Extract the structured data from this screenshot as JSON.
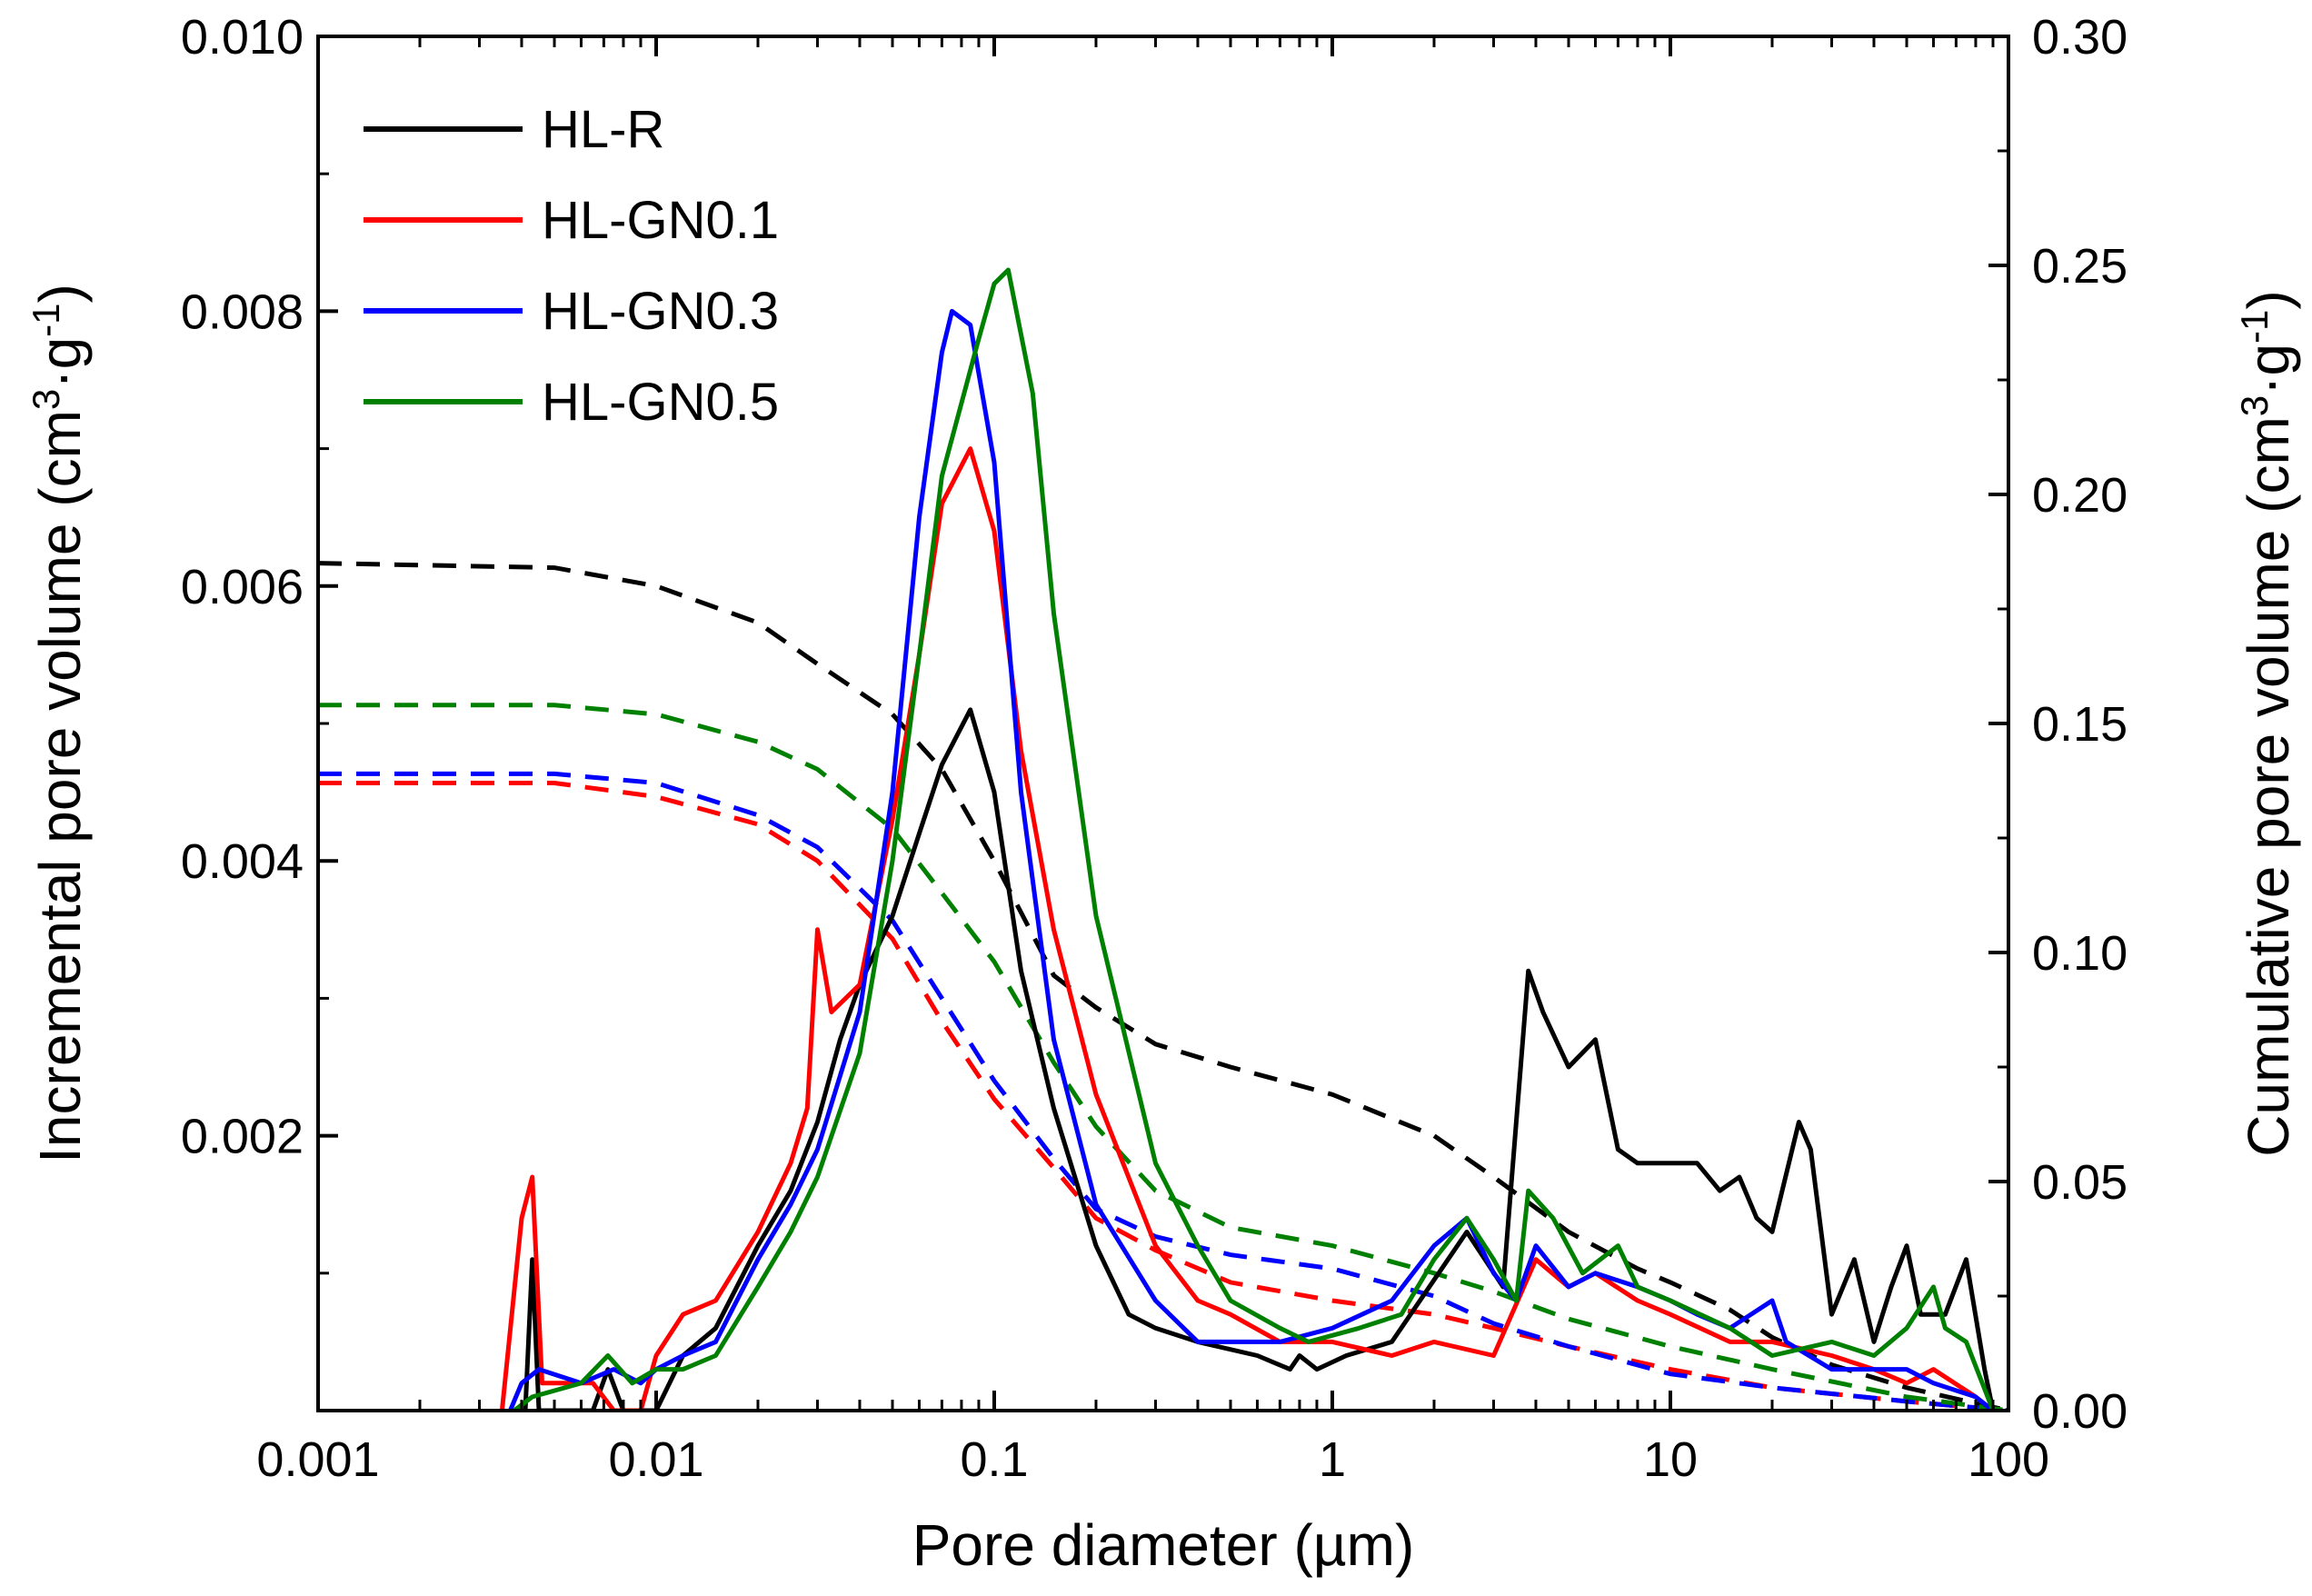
{
  "chart_data": {
    "type": "line",
    "title": "",
    "xlabel": "Pore diameter (µm)",
    "ylabel_left": "Incremental pore volume (cm3·g-1)",
    "ylabel_right": "Cumulative pore volume (cm3·g-1)",
    "x_scale": "log",
    "xlim": [
      0.001,
      100
    ],
    "ylim_left": [
      0,
      0.01
    ],
    "ylim_right": [
      0,
      0.3
    ],
    "x_ticks": [
      0.001,
      0.01,
      0.1,
      1,
      10,
      100
    ],
    "x_tick_labels": [
      "0.001",
      "0.01",
      "0.1",
      "1",
      "10",
      "100"
    ],
    "y_left_ticks": [
      0.002,
      0.004,
      0.006,
      0.008,
      0.01
    ],
    "y_left_tick_labels": [
      "0.002",
      "0.004",
      "0.006",
      "0.008",
      "0.010"
    ],
    "y_right_ticks": [
      0,
      0.05,
      0.1,
      0.15,
      0.2,
      0.25,
      0.3
    ],
    "y_right_tick_labels": [
      "0.00",
      "0.05",
      "0.10",
      "0.15",
      "0.20",
      "0.25",
      "0.30"
    ],
    "legend_position": "top-left",
    "series": [
      {
        "name": "HL-R",
        "color": "#000000",
        "incremental": [
          [
            0.0041,
            0
          ],
          [
            0.0043,
            0.0011
          ],
          [
            0.0045,
            0
          ],
          [
            0.0065,
            0
          ],
          [
            0.0072,
            0.0003
          ],
          [
            0.008,
            0
          ],
          [
            0.01,
            0
          ],
          [
            0.012,
            0.0004
          ],
          [
            0.015,
            0.0006
          ],
          [
            0.02,
            0.0012
          ],
          [
            0.025,
            0.0016
          ],
          [
            0.03,
            0.0021
          ],
          [
            0.035,
            0.0027
          ],
          [
            0.04,
            0.0031
          ],
          [
            0.05,
            0.0036
          ],
          [
            0.06,
            0.0042
          ],
          [
            0.07,
            0.0047
          ],
          [
            0.085,
            0.0051
          ],
          [
            0.1,
            0.0045
          ],
          [
            0.12,
            0.0032
          ],
          [
            0.15,
            0.0022
          ],
          [
            0.2,
            0.0012
          ],
          [
            0.25,
            0.0007
          ],
          [
            0.3,
            0.0006
          ],
          [
            0.4,
            0.0005
          ],
          [
            0.6,
            0.0004
          ],
          [
            0.75,
            0.0003
          ],
          [
            0.8,
            0.0004
          ],
          [
            0.9,
            0.0003
          ],
          [
            1.1,
            0.0004
          ],
          [
            1.5,
            0.0005
          ],
          [
            2.5,
            0.0013
          ],
          [
            3.2,
            0.0009
          ],
          [
            3.8,
            0.0032
          ],
          [
            4.2,
            0.0029
          ],
          [
            5,
            0.0025
          ],
          [
            6,
            0.0027
          ],
          [
            7,
            0.0019
          ],
          [
            8,
            0.0018
          ],
          [
            12,
            0.0018
          ],
          [
            14,
            0.0016
          ],
          [
            16,
            0.0017
          ],
          [
            18,
            0.0014
          ],
          [
            20,
            0.0013
          ],
          [
            24,
            0.0021
          ],
          [
            26,
            0.0019
          ],
          [
            30,
            0.0007
          ],
          [
            35,
            0.0011
          ],
          [
            40,
            0.0005
          ],
          [
            45,
            0.0009
          ],
          [
            50,
            0.0012
          ],
          [
            55,
            0.0007
          ],
          [
            65,
            0.0007
          ],
          [
            75,
            0.0011
          ],
          [
            85,
            0.0003
          ],
          [
            90,
            0
          ]
        ],
        "cumulative": [
          [
            0.001,
            0.185
          ],
          [
            0.005,
            0.184
          ],
          [
            0.01,
            0.18
          ],
          [
            0.02,
            0.172
          ],
          [
            0.03,
            0.163
          ],
          [
            0.05,
            0.152
          ],
          [
            0.07,
            0.14
          ],
          [
            0.1,
            0.12
          ],
          [
            0.15,
            0.095
          ],
          [
            0.2,
            0.088
          ],
          [
            0.3,
            0.08
          ],
          [
            0.5,
            0.075
          ],
          [
            1,
            0.069
          ],
          [
            2,
            0.06
          ],
          [
            3,
            0.051
          ],
          [
            5,
            0.039
          ],
          [
            8,
            0.031
          ],
          [
            10,
            0.028
          ],
          [
            15,
            0.022
          ],
          [
            20,
            0.016
          ],
          [
            30,
            0.01
          ],
          [
            50,
            0.005
          ],
          [
            100,
            0
          ]
        ]
      },
      {
        "name": "HL-GN0.1",
        "color": "#ff0000",
        "incremental": [
          [
            0.0035,
            0
          ],
          [
            0.004,
            0.0014
          ],
          [
            0.0043,
            0.0017
          ],
          [
            0.0046,
            0.0002
          ],
          [
            0.0065,
            0.0002
          ],
          [
            0.0075,
            0
          ],
          [
            0.009,
            0
          ],
          [
            0.01,
            0.0004
          ],
          [
            0.012,
            0.0007
          ],
          [
            0.015,
            0.0008
          ],
          [
            0.02,
            0.0013
          ],
          [
            0.025,
            0.0018
          ],
          [
            0.028,
            0.0022
          ],
          [
            0.03,
            0.0035
          ],
          [
            0.033,
            0.0029
          ],
          [
            0.04,
            0.0031
          ],
          [
            0.05,
            0.0043
          ],
          [
            0.06,
            0.0055
          ],
          [
            0.07,
            0.0066
          ],
          [
            0.085,
            0.007
          ],
          [
            0.1,
            0.0064
          ],
          [
            0.12,
            0.0048
          ],
          [
            0.15,
            0.0035
          ],
          [
            0.2,
            0.0023
          ],
          [
            0.3,
            0.0012
          ],
          [
            0.4,
            0.0008
          ],
          [
            0.5,
            0.0007
          ],
          [
            0.7,
            0.0005
          ],
          [
            1,
            0.0005
          ],
          [
            1.5,
            0.0004
          ],
          [
            2,
            0.0005
          ],
          [
            3,
            0.0004
          ],
          [
            4,
            0.0011
          ],
          [
            5,
            0.0009
          ],
          [
            6,
            0.001
          ],
          [
            8,
            0.0008
          ],
          [
            10,
            0.0007
          ],
          [
            15,
            0.0005
          ],
          [
            20,
            0.0005
          ],
          [
            30,
            0.0004
          ],
          [
            40,
            0.0003
          ],
          [
            50,
            0.0002
          ],
          [
            60,
            0.0003
          ],
          [
            80,
            0.0001
          ],
          [
            90,
            0
          ]
        ],
        "cumulative": [
          [
            0.001,
            0.137
          ],
          [
            0.005,
            0.137
          ],
          [
            0.01,
            0.134
          ],
          [
            0.02,
            0.128
          ],
          [
            0.03,
            0.12
          ],
          [
            0.05,
            0.103
          ],
          [
            0.07,
            0.085
          ],
          [
            0.1,
            0.068
          ],
          [
            0.15,
            0.053
          ],
          [
            0.2,
            0.042
          ],
          [
            0.3,
            0.035
          ],
          [
            0.5,
            0.028
          ],
          [
            1,
            0.024
          ],
          [
            2,
            0.021
          ],
          [
            3,
            0.018
          ],
          [
            5,
            0.014
          ],
          [
            10,
            0.009
          ],
          [
            20,
            0.005
          ],
          [
            50,
            0.002
          ],
          [
            100,
            0
          ]
        ]
      },
      {
        "name": "HL-GN0.3",
        "color": "#0000ff",
        "incremental": [
          [
            0.0037,
            0
          ],
          [
            0.004,
            0.0002
          ],
          [
            0.0045,
            0.0003
          ],
          [
            0.006,
            0.0002
          ],
          [
            0.0075,
            0.0003
          ],
          [
            0.009,
            0.0002
          ],
          [
            0.01,
            0.0003
          ],
          [
            0.012,
            0.0004
          ],
          [
            0.015,
            0.0005
          ],
          [
            0.02,
            0.0011
          ],
          [
            0.025,
            0.0015
          ],
          [
            0.03,
            0.0019
          ],
          [
            0.04,
            0.0029
          ],
          [
            0.05,
            0.0045
          ],
          [
            0.06,
            0.0065
          ],
          [
            0.07,
            0.0077
          ],
          [
            0.075,
            0.008
          ],
          [
            0.085,
            0.0079
          ],
          [
            0.1,
            0.0069
          ],
          [
            0.12,
            0.0045
          ],
          [
            0.15,
            0.0027
          ],
          [
            0.2,
            0.0015
          ],
          [
            0.3,
            0.0008
          ],
          [
            0.4,
            0.0005
          ],
          [
            0.5,
            0.0005
          ],
          [
            0.7,
            0.0005
          ],
          [
            1,
            0.0006
          ],
          [
            1.5,
            0.0008
          ],
          [
            2,
            0.0012
          ],
          [
            2.5,
            0.0014
          ],
          [
            3,
            0.001
          ],
          [
            3.5,
            0.0008
          ],
          [
            4,
            0.0012
          ],
          [
            5,
            0.0009
          ],
          [
            6,
            0.001
          ],
          [
            8,
            0.0009
          ],
          [
            10,
            0.0008
          ],
          [
            12,
            0.0007
          ],
          [
            15,
            0.0006
          ],
          [
            20,
            0.0008
          ],
          [
            22,
            0.0005
          ],
          [
            30,
            0.0003
          ],
          [
            40,
            0.0003
          ],
          [
            50,
            0.0003
          ],
          [
            60,
            0.0002
          ],
          [
            80,
            0.0001
          ],
          [
            90,
            0
          ]
        ],
        "cumulative": [
          [
            0.001,
            0.139
          ],
          [
            0.005,
            0.139
          ],
          [
            0.01,
            0.137
          ],
          [
            0.02,
            0.13
          ],
          [
            0.03,
            0.123
          ],
          [
            0.05,
            0.107
          ],
          [
            0.07,
            0.09
          ],
          [
            0.1,
            0.072
          ],
          [
            0.15,
            0.055
          ],
          [
            0.2,
            0.044
          ],
          [
            0.3,
            0.038
          ],
          [
            0.5,
            0.034
          ],
          [
            1,
            0.031
          ],
          [
            2,
            0.025
          ],
          [
            3,
            0.019
          ],
          [
            5,
            0.014
          ],
          [
            10,
            0.008
          ],
          [
            20,
            0.005
          ],
          [
            50,
            0.002
          ],
          [
            100,
            0
          ]
        ]
      },
      {
        "name": "HL-GN0.5",
        "color": "#008000",
        "incremental": [
          [
            0.0038,
            0
          ],
          [
            0.0043,
            0.0001
          ],
          [
            0.006,
            0.0002
          ],
          [
            0.0072,
            0.0004
          ],
          [
            0.0085,
            0.0002
          ],
          [
            0.01,
            0.0003
          ],
          [
            0.012,
            0.0003
          ],
          [
            0.015,
            0.0004
          ],
          [
            0.02,
            0.0009
          ],
          [
            0.025,
            0.0013
          ],
          [
            0.03,
            0.0017
          ],
          [
            0.04,
            0.0026
          ],
          [
            0.05,
            0.004
          ],
          [
            0.06,
            0.0055
          ],
          [
            0.07,
            0.0068
          ],
          [
            0.09,
            0.0078
          ],
          [
            0.1,
            0.0082
          ],
          [
            0.11,
            0.0083
          ],
          [
            0.13,
            0.0074
          ],
          [
            0.15,
            0.0058
          ],
          [
            0.2,
            0.0036
          ],
          [
            0.3,
            0.0018
          ],
          [
            0.4,
            0.0012
          ],
          [
            0.5,
            0.0008
          ],
          [
            0.7,
            0.0006
          ],
          [
            0.85,
            0.0005
          ],
          [
            1.2,
            0.0006
          ],
          [
            1.6,
            0.0007
          ],
          [
            2,
            0.0011
          ],
          [
            2.5,
            0.0014
          ],
          [
            3,
            0.0011
          ],
          [
            3.5,
            0.0008
          ],
          [
            3.8,
            0.0016
          ],
          [
            4.5,
            0.0014
          ],
          [
            5.5,
            0.001
          ],
          [
            7,
            0.0012
          ],
          [
            8,
            0.0009
          ],
          [
            10,
            0.0008
          ],
          [
            15,
            0.0006
          ],
          [
            20,
            0.0004
          ],
          [
            30,
            0.0005
          ],
          [
            40,
            0.0004
          ],
          [
            50,
            0.0006
          ],
          [
            60,
            0.0009
          ],
          [
            65,
            0.0006
          ],
          [
            75,
            0.0005
          ],
          [
            90,
            0
          ]
        ],
        "cumulative": [
          [
            0.001,
            0.154
          ],
          [
            0.005,
            0.154
          ],
          [
            0.01,
            0.152
          ],
          [
            0.02,
            0.146
          ],
          [
            0.03,
            0.14
          ],
          [
            0.05,
            0.127
          ],
          [
            0.07,
            0.113
          ],
          [
            0.1,
            0.098
          ],
          [
            0.15,
            0.076
          ],
          [
            0.2,
            0.062
          ],
          [
            0.3,
            0.048
          ],
          [
            0.5,
            0.04
          ],
          [
            1,
            0.036
          ],
          [
            2,
            0.03
          ],
          [
            3,
            0.026
          ],
          [
            5,
            0.02
          ],
          [
            10,
            0.014
          ],
          [
            20,
            0.009
          ],
          [
            50,
            0.003
          ],
          [
            100,
            0
          ]
        ]
      }
    ]
  }
}
